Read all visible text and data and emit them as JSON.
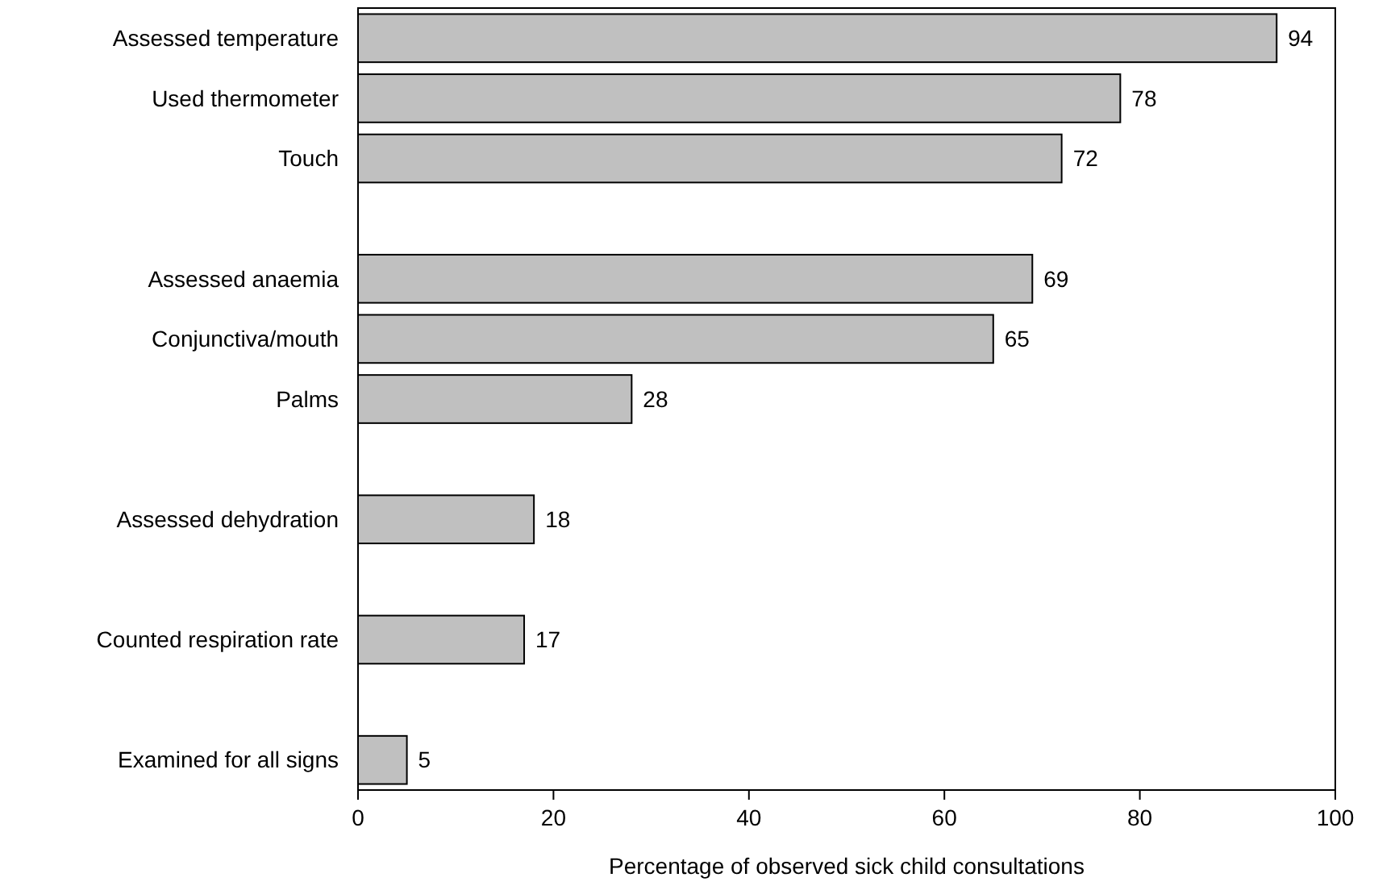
{
  "chart_data": {
    "type": "bar",
    "orientation": "horizontal",
    "xlabel": "Percentage of observed sick child consultations",
    "categories": [
      "Assessed temperature",
      "Used thermometer",
      "Touch",
      null,
      "Assessed anaemia",
      "Conjunctiva/mouth",
      "Palms",
      null,
      "Assessed dehydration",
      null,
      "Counted respiration rate",
      null,
      "Examined for all signs"
    ],
    "values": [
      94,
      78,
      72,
      null,
      69,
      65,
      28,
      null,
      18,
      null,
      17,
      null,
      5
    ],
    "color": "#c0c0c0",
    "xlim": [
      0,
      100
    ],
    "xticks": [
      0,
      20,
      40,
      60,
      80,
      100
    ],
    "data_labels": true
  }
}
